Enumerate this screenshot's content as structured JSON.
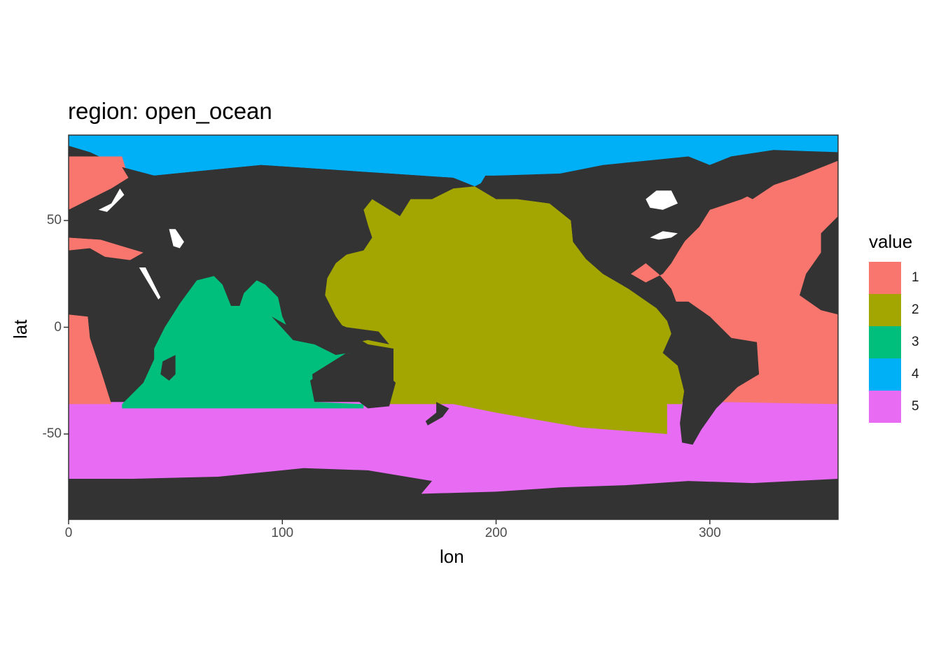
{
  "chart_data": {
    "type": "heatmap",
    "title": "region: open_ocean",
    "xlabel": "lon",
    "ylabel": "lat",
    "xlim": [
      0,
      360
    ],
    "ylim": [
      -90,
      90
    ],
    "x_ticks": [
      0,
      100,
      200,
      300
    ],
    "y_ticks": [
      50,
      0,
      -50
    ],
    "x_tick_labels": [
      "0",
      "100",
      "200",
      "300"
    ],
    "y_tick_labels": [
      "50",
      "0",
      "-50"
    ],
    "land_color": "#333333",
    "missing_color": "#ffffff",
    "legend": {
      "title": "value",
      "placement": "right",
      "entries": [
        {
          "label": "1",
          "color": "#F8766D"
        },
        {
          "label": "2",
          "color": "#A3A500"
        },
        {
          "label": "3",
          "color": "#00BF7D"
        },
        {
          "label": "4",
          "color": "#00B0F6"
        },
        {
          "label": "5",
          "color": "#E76BF3"
        }
      ]
    },
    "regions": [
      {
        "value": 5,
        "description": "Southern Ocean band"
      },
      {
        "value": 4,
        "description": "Arctic Ocean"
      },
      {
        "value": 2,
        "description": "Pacific Ocean"
      },
      {
        "value": 3,
        "description": "Indian Ocean"
      },
      {
        "value": 1,
        "description": "Atlantic Ocean"
      }
    ]
  }
}
